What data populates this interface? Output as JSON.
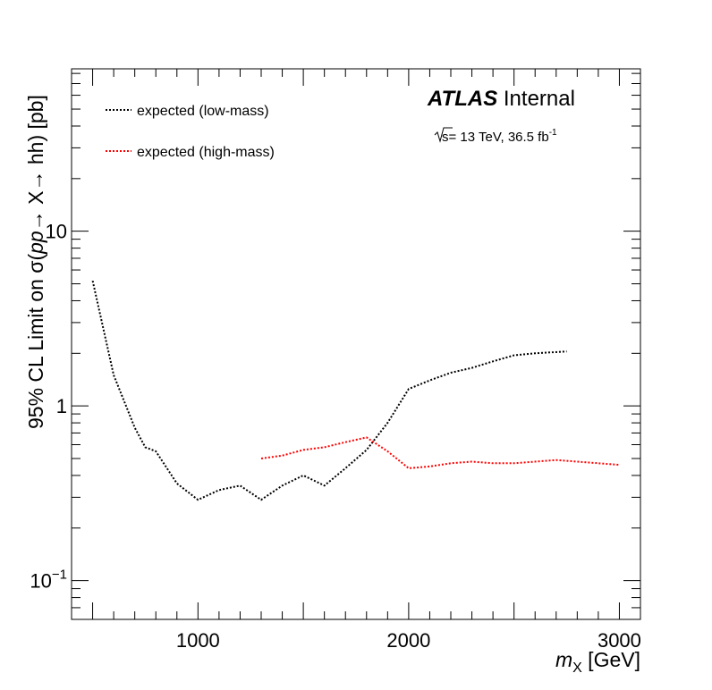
{
  "chart_data": {
    "type": "line",
    "xlabel": "m_X [GeV]",
    "ylabel": "95% CL Limit on σ(pp→ X→ hh) [pb]",
    "xlim": [
      400,
      3100
    ],
    "ylim": [
      0.06,
      85
    ],
    "yscale": "log",
    "x_ticks": [
      {
        "value": 1000,
        "label": "1000"
      },
      {
        "value": 2000,
        "label": "2000"
      },
      {
        "value": 3000,
        "label": "3000"
      }
    ],
    "y_ticks": [
      {
        "value": 0.1,
        "base": "10",
        "exp": "−1"
      },
      {
        "value": 1,
        "base": "1",
        "exp": ""
      },
      {
        "value": 10,
        "base": "10",
        "exp": ""
      }
    ],
    "experiment": "ATLAS",
    "experiment_status": "Internal",
    "energy_text": "s= 13 TeV, 36.5 fb",
    "energy_exp": "-1",
    "legend_position": "top-left",
    "series": [
      {
        "name": "expected (low-mass)",
        "color": "#000000",
        "x": [
          500,
          600,
          700,
          750,
          800,
          900,
          1000,
          1100,
          1200,
          1300,
          1400,
          1500,
          1600,
          1700,
          1800,
          1900,
          2000,
          2100,
          2200,
          2300,
          2400,
          2500,
          2600,
          2750
        ],
        "y": [
          5.2,
          1.5,
          0.75,
          0.58,
          0.55,
          0.36,
          0.29,
          0.33,
          0.35,
          0.29,
          0.35,
          0.4,
          0.35,
          0.44,
          0.56,
          0.8,
          1.25,
          1.4,
          1.55,
          1.65,
          1.8,
          1.95,
          2.0,
          2.05
        ]
      },
      {
        "name": "expected (high-mass)",
        "color": "#ff0000",
        "x": [
          1300,
          1400,
          1500,
          1600,
          1700,
          1800,
          1900,
          2000,
          2100,
          2200,
          2300,
          2400,
          2500,
          2600,
          2700,
          2800,
          2900,
          3000
        ],
        "y": [
          0.5,
          0.52,
          0.56,
          0.58,
          0.62,
          0.66,
          0.55,
          0.44,
          0.45,
          0.47,
          0.48,
          0.47,
          0.47,
          0.48,
          0.49,
          0.48,
          0.47,
          0.46
        ]
      }
    ]
  }
}
